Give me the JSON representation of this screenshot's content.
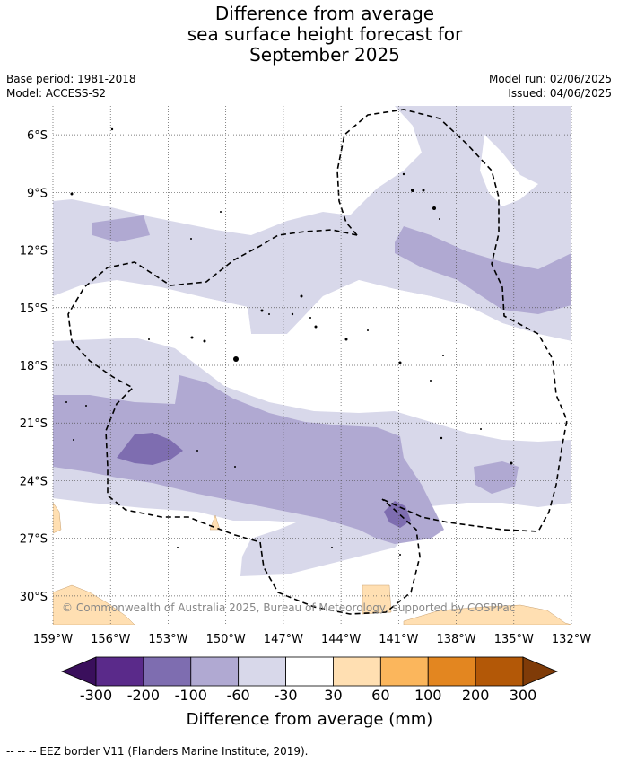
{
  "title": {
    "line1": "Difference from average",
    "line2": "sea surface height forecast for",
    "line3": "September 2025"
  },
  "meta": {
    "base_period": "Base period: 1981-2018",
    "model": "Model: ACCESS-S2",
    "model_run": "Model run: 02/06/2025",
    "issued": "Issued: 04/06/2025"
  },
  "map": {
    "lon_range": [
      -159,
      -132
    ],
    "lat_range": [
      -31.5,
      -4.5
    ],
    "lon_ticks": [
      "159°W",
      "156°W",
      "153°W",
      "150°W",
      "147°W",
      "144°W",
      "141°W",
      "138°W",
      "135°W",
      "132°W"
    ],
    "lat_ticks": [
      "6°S",
      "9°S",
      "12°S",
      "15°S",
      "18°S",
      "21°S",
      "24°S",
      "27°S",
      "30°S"
    ],
    "copyright": "© Commonwealth of Australia 2025, Bureau of Meteorology, supported by COSPPac",
    "grid": true
  },
  "colorbar": {
    "ticks": [
      "-300",
      "-200",
      "-100",
      "-60",
      "-30",
      "30",
      "60",
      "100",
      "200",
      "300"
    ],
    "colors": [
      "#3a0f5c",
      "#5a2a8a",
      "#7e6db0",
      "#b0a9d2",
      "#d8d8ea",
      "#ffffff",
      "#ffdfb2",
      "#fbb65c",
      "#e38620",
      "#b35807",
      "#7f3b08"
    ],
    "label": "Difference from average (mm)"
  },
  "legend_note": "--  --  -- EEZ border V11 (Flanders Marine Institute, 2019)."
}
